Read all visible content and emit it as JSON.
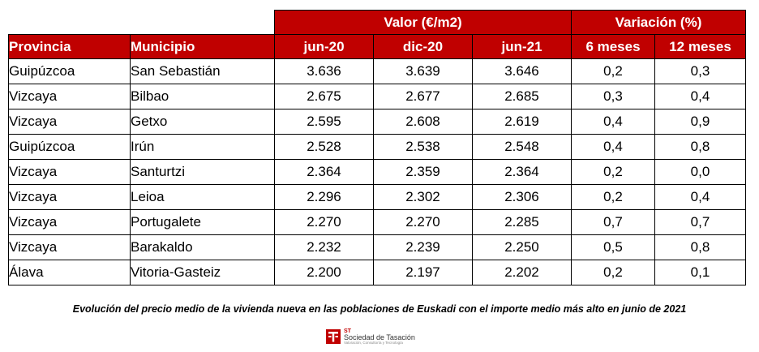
{
  "table": {
    "group_headers": {
      "valor": "Valor (€/m2)",
      "variacion": "Variación (%)"
    },
    "columns": [
      "Provincia",
      "Municipio",
      "jun-20",
      "dic-20",
      "jun-21",
      "6 meses",
      "12 meses"
    ],
    "rows": [
      [
        "Guipúzcoa",
        "San Sebastián",
        "3.636",
        "3.639",
        "3.646",
        "0,2",
        "0,3"
      ],
      [
        "Vizcaya",
        "Bilbao",
        "2.675",
        "2.677",
        "2.685",
        "0,3",
        "0,4"
      ],
      [
        "Vizcaya",
        "Getxo",
        "2.595",
        "2.608",
        "2.619",
        "0,4",
        "0,9"
      ],
      [
        "Guipúzcoa",
        "Irún",
        "2.528",
        "2.538",
        "2.548",
        "0,4",
        "0,8"
      ],
      [
        "Vizcaya",
        "Santurtzi",
        "2.364",
        "2.359",
        "2.364",
        "0,2",
        "0,0"
      ],
      [
        "Vizcaya",
        "Leioa",
        "2.296",
        "2.302",
        "2.306",
        "0,2",
        "0,4"
      ],
      [
        "Vizcaya",
        "Portugalete",
        "2.270",
        "2.270",
        "2.285",
        "0,7",
        "0,7"
      ],
      [
        "Vizcaya",
        "Barakaldo",
        "2.232",
        "2.239",
        "2.250",
        "0,5",
        "0,8"
      ],
      [
        "Álava",
        "Vitoria-Gasteiz",
        "2.200",
        "2.197",
        "2.202",
        "0,2",
        "0,1"
      ]
    ]
  },
  "caption": "Evolución del precio medio de la vivienda nueva en las poblaciones de Euskadi con el importe medio más alto en junio de 2021",
  "logo": {
    "abbr": "ST",
    "name": "Sociedad de Tasación",
    "tagline": "Valoración, Consultoría y Tecnología",
    "icon": "st-logo-icon"
  },
  "colors": {
    "header_bg": "#c00000",
    "header_text": "#ffffff"
  }
}
